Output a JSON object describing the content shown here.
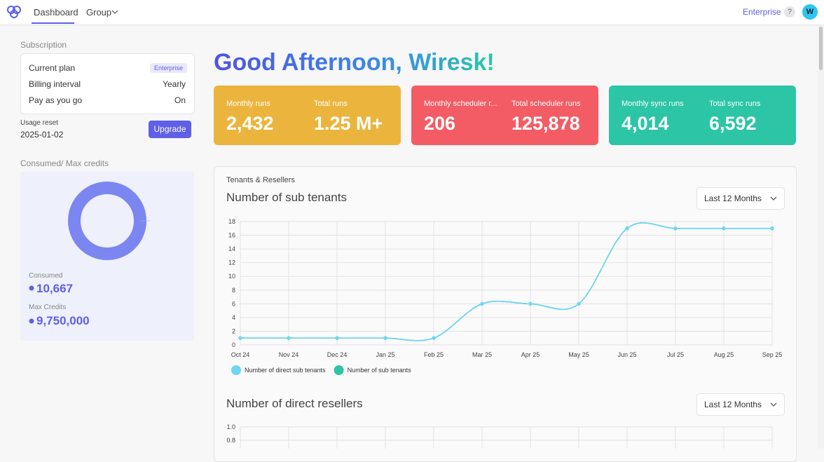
{
  "nav": {
    "items": [
      "Dashboard",
      "Group"
    ],
    "plan": "Enterprise",
    "help": "?",
    "avatar": "W"
  },
  "sidebar": {
    "subscription_title": "Subscription",
    "rows": [
      [
        "Current plan",
        "Enterprise"
      ],
      [
        "Billing interval",
        "Yearly"
      ],
      [
        "Pay as you go",
        "On"
      ]
    ],
    "usage_reset_label": "Usage reset",
    "usage_reset_date": "2025-01-02",
    "upgrade": "Upgrade",
    "credits_title": "Consumed/ Max credits",
    "consumed_label": "Consumed",
    "consumed_value": "10,667",
    "max_label": "Max Credits",
    "max_value": "9,750,000"
  },
  "greeting": "Good Afternoon, Wiresk!",
  "cards": [
    {
      "color": "#ebb53d",
      "stats": [
        {
          "label": "Monthly runs",
          "value": "2,432"
        },
        {
          "label": "Total runs",
          "value": "1.25 M+"
        }
      ]
    },
    {
      "color": "#f35c64",
      "stats": [
        {
          "label": "Monthly scheduler r...",
          "value": "206"
        },
        {
          "label": "Total scheduler runs",
          "value": "125,878"
        }
      ]
    },
    {
      "color": "#2cc5a6",
      "stats": [
        {
          "label": "Monthly sync runs",
          "value": "4,014"
        },
        {
          "label": "Total sync runs",
          "value": "6,592"
        }
      ]
    }
  ],
  "section_label": "Tenants & Resellers",
  "chart_data": [
    {
      "type": "line",
      "title": "Number of sub tenants",
      "filter": "Last 12 Months",
      "categories": [
        "Oct 24",
        "Nov 24",
        "Dec 24",
        "Jan 25",
        "Feb 25",
        "Mar 25",
        "Apr 25",
        "May 25",
        "Jun 25",
        "Jul 25",
        "Aug 25",
        "Sep 25"
      ],
      "series": [
        {
          "name": "Number of direct sub tenants",
          "color": "#6fd6f4",
          "values": [
            1,
            1,
            1,
            1,
            1,
            6,
            6,
            6,
            17,
            17,
            17,
            17
          ]
        },
        {
          "name": "Number of sub tenants",
          "color": "#2ec4a5",
          "values": [
            1,
            1,
            1,
            1,
            1,
            6,
            6,
            6,
            17,
            17,
            17,
            17
          ]
        }
      ],
      "ylim": [
        0,
        18
      ],
      "yticks": [
        0,
        2,
        4,
        6,
        8,
        10,
        12,
        14,
        16,
        18
      ],
      "grid": true,
      "legend": "bottom-left"
    },
    {
      "type": "line",
      "title": "Number of direct resellers",
      "filter": "Last 12 Months",
      "ylim": [
        0,
        1
      ],
      "yticks": [
        {
          "value": 1,
          "label": "1.0"
        },
        0.8
      ],
      "grid": true
    }
  ]
}
